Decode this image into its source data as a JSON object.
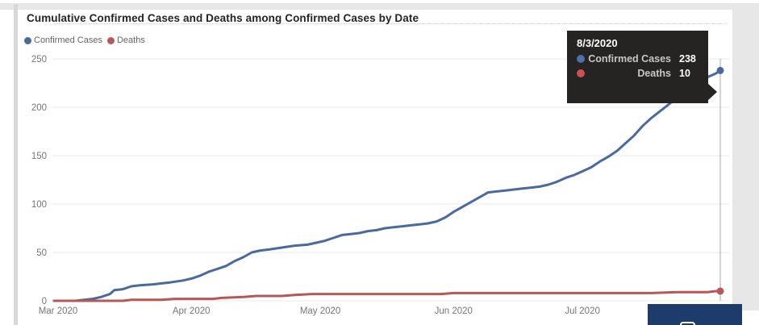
{
  "page": {
    "background_color": "#ffffff",
    "band_color": "#e7e7e7",
    "left_strip_color": "#d8d8d8",
    "nav_box_color": "#1d3c6b"
  },
  "chart": {
    "title": "Cumulative Confirmed Cases and Deaths among Confirmed Cases by Date",
    "title_color": "#252423",
    "legend": [
      {
        "label": "Confirmed Cases",
        "color": "#4a6a9d"
      },
      {
        "label": "Deaths",
        "color": "#b85757"
      }
    ],
    "axis_text_color": "#777674",
    "gridline_color": "#e8e8e8",
    "ruler_color": "#a8a8a8"
  },
  "tooltip": {
    "date": "8/3/2020",
    "rows": [
      {
        "label": "Confirmed Cases",
        "value": "238",
        "color": "#4f6fa8"
      },
      {
        "label": "Deaths",
        "value": "10",
        "color": "#cc5152"
      }
    ],
    "background": "#252423"
  },
  "chart_data": {
    "type": "line",
    "title": "Cumulative Confirmed Cases and Deaths among Confirmed Cases by Date",
    "xlabel": "",
    "ylabel": "",
    "ylim": [
      0,
      250
    ],
    "yticks": [
      0,
      50,
      100,
      150,
      200,
      250
    ],
    "xticks": [
      {
        "label": "Mar 2020",
        "date": "3/1"
      },
      {
        "label": "Apr 2020",
        "date": "4/1"
      },
      {
        "label": "May 2020",
        "date": "5/1"
      },
      {
        "label": "Jun 2020",
        "date": "6/1"
      },
      {
        "label": "Jul 2020",
        "date": "7/1"
      }
    ],
    "grid": true,
    "legend_position": "top-left",
    "ruler_date": "8/3",
    "series": [
      {
        "name": "Confirmed Cases",
        "color": "#4a6a9d",
        "x": [
          "3/1",
          "3/6",
          "3/8",
          "3/10",
          "3/12",
          "3/14",
          "3/15",
          "3/17",
          "3/19",
          "3/21",
          "3/24",
          "3/26",
          "3/28",
          "3/31",
          "4/2",
          "4/4",
          "4/6",
          "4/8",
          "4/10",
          "4/12",
          "4/14",
          "4/16",
          "4/18",
          "4/20",
          "4/23",
          "4/26",
          "4/29",
          "5/1",
          "5/3",
          "5/5",
          "5/7",
          "5/9",
          "5/11",
          "5/13",
          "5/15",
          "5/17",
          "5/19",
          "5/21",
          "5/23",
          "5/25",
          "5/27",
          "5/29",
          "5/31",
          "6/2",
          "6/4",
          "6/6",
          "6/8",
          "6/10",
          "6/12",
          "6/14",
          "6/16",
          "6/18",
          "6/20",
          "6/22",
          "6/24",
          "6/26",
          "6/28",
          "6/30",
          "7/2",
          "7/4",
          "7/6",
          "7/8",
          "7/10",
          "7/12",
          "7/14",
          "7/16",
          "7/18",
          "7/20",
          "7/22",
          "7/24",
          "7/26",
          "7/28",
          "7/30",
          "7/31",
          "8/1",
          "8/2",
          "8/3"
        ],
        "values": [
          0,
          0,
          1,
          2,
          4,
          7,
          11,
          12,
          15,
          16,
          17,
          18,
          19,
          21,
          23,
          26,
          30,
          33,
          36,
          41,
          45,
          50,
          52,
          53,
          55,
          57,
          58,
          60,
          62,
          65,
          68,
          69,
          70,
          72,
          73,
          75,
          76,
          77,
          78,
          79,
          80,
          82,
          86,
          92,
          97,
          102,
          107,
          112,
          113,
          114,
          115,
          116,
          117,
          118,
          120,
          123,
          127,
          130,
          134,
          138,
          144,
          149,
          155,
          163,
          171,
          181,
          189,
          196,
          203,
          210,
          217,
          223,
          228,
          231,
          233,
          235,
          238
        ]
      },
      {
        "name": "Deaths",
        "color": "#b85757",
        "x": [
          "3/1",
          "3/17",
          "3/19",
          "3/26",
          "3/29",
          "4/7",
          "4/9",
          "4/14",
          "4/17",
          "4/23",
          "4/26",
          "4/30",
          "5/30",
          "6/2",
          "7/18",
          "7/24",
          "7/31",
          "8/2",
          "8/3"
        ],
        "values": [
          0,
          0,
          1,
          1,
          2,
          2,
          3,
          4,
          5,
          5,
          6,
          7,
          7,
          8,
          8,
          9,
          9,
          10,
          10
        ]
      }
    ]
  }
}
